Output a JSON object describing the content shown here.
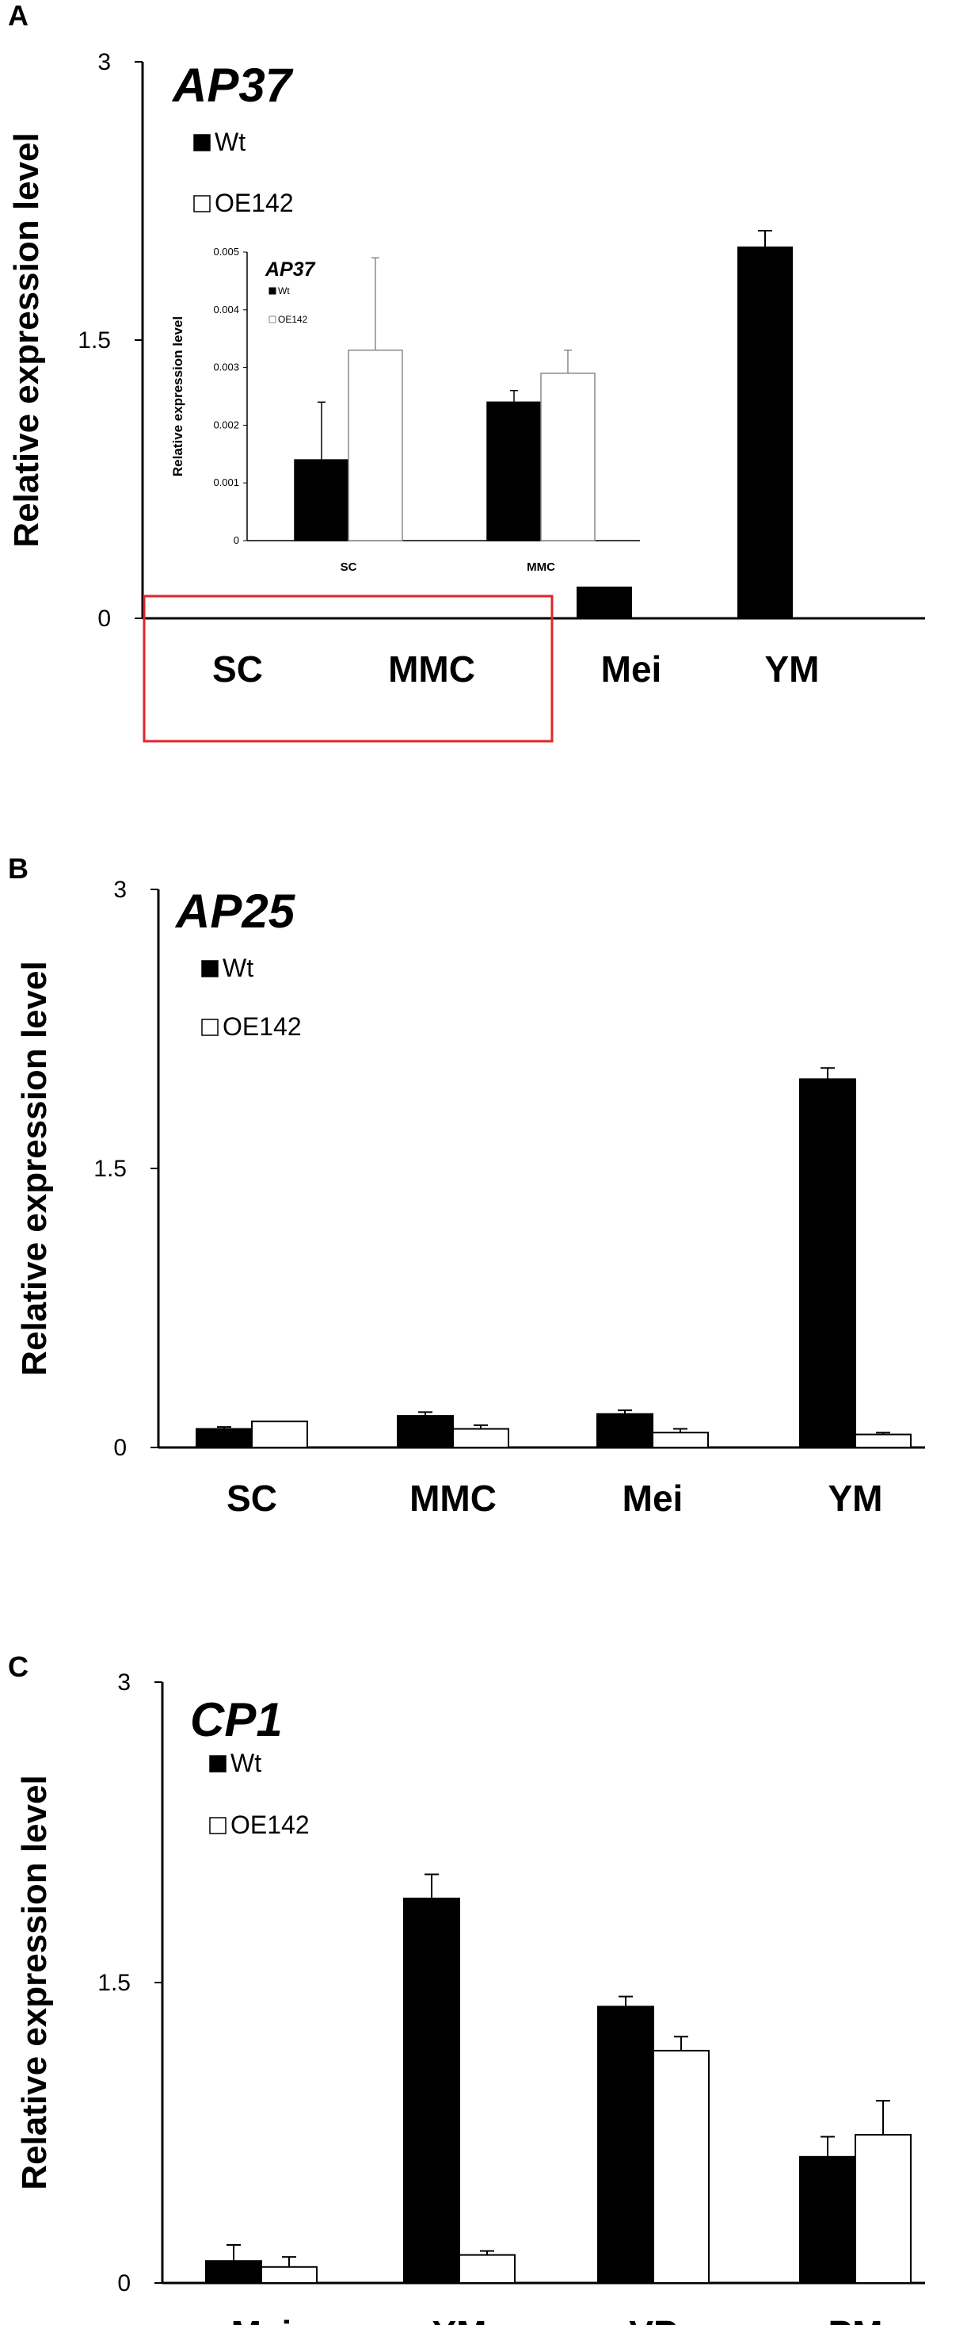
{
  "colors": {
    "wt": "#000000",
    "oe": "#ffffff",
    "highlight": "#e0262a"
  },
  "chart_data": [
    {
      "panel": "A",
      "type": "bar",
      "title": "AP37",
      "ylabel": "Relative expression level",
      "ylim": [
        0,
        3
      ],
      "yticks": [
        "0",
        "1.5",
        "3"
      ],
      "categories": [
        "SC",
        "MMC",
        "Mei",
        "YM"
      ],
      "legend_placement": "top-left",
      "series": [
        {
          "name": "Wt",
          "values": [
            null,
            null,
            0.22,
            2.0
          ],
          "errors": [
            null,
            null,
            0.01,
            0.09
          ]
        },
        {
          "name": "OE142",
          "values": [
            null,
            null,
            null,
            null
          ],
          "errors": [
            null,
            null,
            null,
            null
          ]
        }
      ],
      "highlight_box": "SC, MMC",
      "inset": {
        "type": "bar",
        "title": "AP37",
        "ylabel": "Relative expression level",
        "ylim": [
          0,
          0.005
        ],
        "yticks": [
          "0",
          "0.001",
          "0.002",
          "0.003",
          "0.004",
          "0.005"
        ],
        "categories": [
          "SC",
          "MMC"
        ],
        "series": [
          {
            "name": "Wt",
            "values": [
              0.0014,
              0.0024
            ],
            "errors": [
              0.001,
              0.0002
            ]
          },
          {
            "name": "OE142",
            "values": [
              0.0033,
              0.0029
            ],
            "errors": [
              0.0016,
              0.0004
            ]
          }
        ]
      }
    },
    {
      "panel": "B",
      "type": "bar",
      "title": "AP25",
      "ylabel": "Relative expression level",
      "ylim": [
        0,
        3
      ],
      "yticks": [
        "0",
        "1.5",
        "3"
      ],
      "categories": [
        "SC",
        "MMC",
        "Mei",
        "YM"
      ],
      "legend_placement": "top-left",
      "series": [
        {
          "name": "Wt",
          "values": [
            0.1,
            0.17,
            0.18,
            1.98
          ],
          "errors": [
            0.01,
            0.02,
            0.02,
            0.06
          ]
        },
        {
          "name": "OE142",
          "values": [
            0.14,
            0.1,
            0.08,
            0.07
          ],
          "errors": [
            0.0,
            0.02,
            0.02,
            0.01
          ]
        }
      ]
    },
    {
      "panel": "C",
      "type": "bar",
      "title": "CP1",
      "ylabel": "Relative expression level",
      "ylim": [
        0,
        3
      ],
      "yticks": [
        "0",
        "1.5",
        "3"
      ],
      "categories": [
        "Mei",
        "YM",
        "VP",
        "PM"
      ],
      "legend_placement": "top-left",
      "series": [
        {
          "name": "Wt",
          "values": [
            0.11,
            1.92,
            1.38,
            0.63
          ],
          "errors": [
            0.08,
            0.12,
            0.05,
            0.1
          ]
        },
        {
          "name": "OE142",
          "values": [
            0.08,
            0.14,
            1.16,
            0.74
          ],
          "errors": [
            0.05,
            0.02,
            0.07,
            0.17
          ]
        }
      ]
    }
  ]
}
